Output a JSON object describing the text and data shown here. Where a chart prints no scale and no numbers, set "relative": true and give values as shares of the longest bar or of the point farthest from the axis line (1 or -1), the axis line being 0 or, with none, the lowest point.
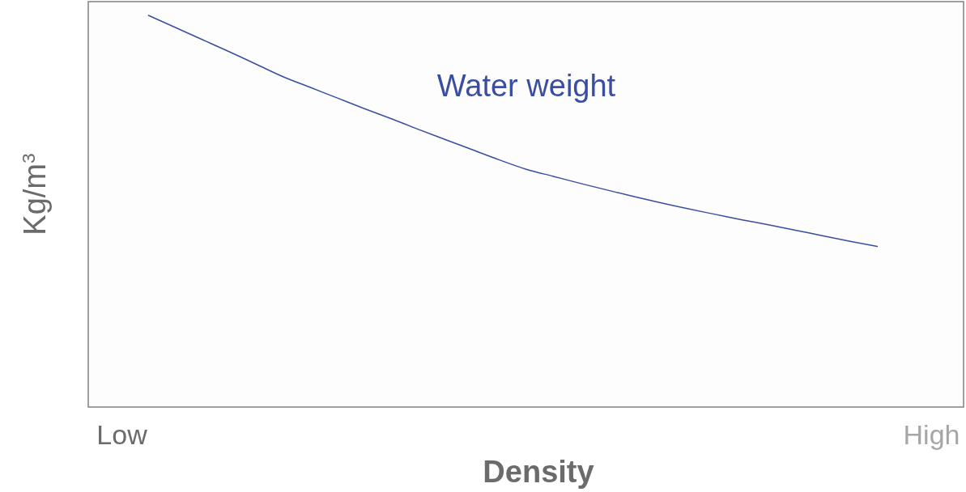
{
  "chart_data": {
    "type": "line",
    "relative": true,
    "xlabel": "Density",
    "ylabel": "Kg/m$^{3}$",
    "categories": [
      "Low",
      null,
      null,
      null,
      null,
      null,
      null,
      null,
      null,
      null,
      null,
      null,
      null,
      null,
      null,
      null,
      null,
      null,
      null,
      null,
      null,
      null,
      null,
      null,
      null,
      null,
      null,
      null,
      null,
      null,
      "High"
    ],
    "tick_labels": "x",
    "legend": false,
    "marker": "none",
    "line_style": "solid",
    "series": [
      {
        "name": "Water weight",
        "color": "#3a4da0",
        "values": [
          null,
          1.0,
          0.969,
          0.938,
          0.907,
          0.875,
          0.843,
          0.816,
          0.789,
          0.762,
          0.736,
          0.709,
          0.683,
          0.657,
          0.631,
          0.607,
          0.589,
          0.571,
          0.554,
          0.537,
          0.521,
          0.506,
          0.492,
          0.478,
          0.465,
          0.451,
          0.437,
          0.423,
          0.41,
          null,
          null
        ]
      }
    ]
  }
}
